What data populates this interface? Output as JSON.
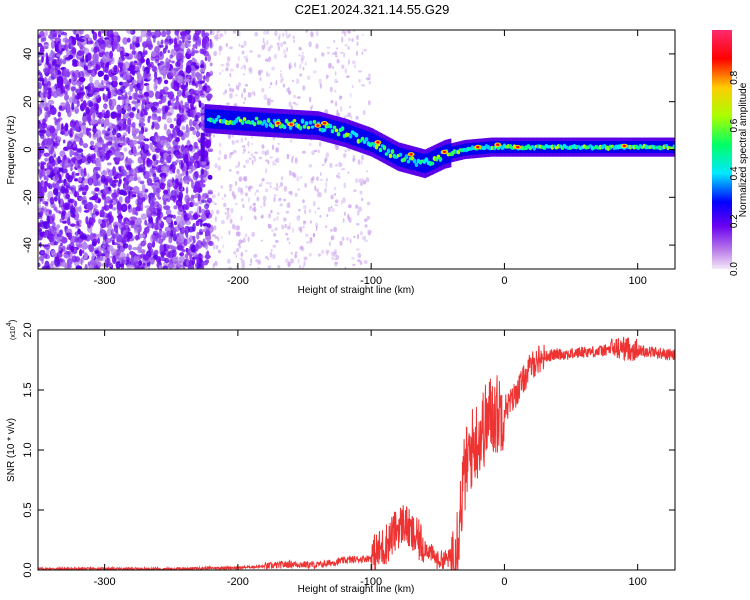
{
  "title": "C2E1.2024.321.14.55.G29",
  "chart_data": [
    {
      "type": "heatmap",
      "xlabel": "Height of straight line (km)",
      "ylabel": "Frequency (Hz)",
      "xlim": [
        -350,
        128
      ],
      "ylim": [
        -50,
        50
      ],
      "x_ticks": [
        -300,
        -200,
        -100,
        0,
        100
      ],
      "y_ticks": [
        -40,
        -20,
        0,
        20,
        40
      ],
      "colorbar": {
        "label": "Normalized spectral amplitude",
        "range": [
          0,
          1
        ],
        "ticks": [
          "0.0",
          "0.2",
          "0.4",
          "0.6",
          "0.8"
        ],
        "colors": [
          "#f4e8f8",
          "#b97be8",
          "#6a00f0",
          "#0000ff",
          "#00e8ff",
          "#00ff66",
          "#aaff00",
          "#ffcc00",
          "#ff0000",
          "#ff2a6e"
        ]
      },
      "ridge": [
        {
          "x": -225,
          "freq": 13
        },
        {
          "x": -200,
          "freq": 12
        },
        {
          "x": -170,
          "freq": 11
        },
        {
          "x": -140,
          "freq": 10
        },
        {
          "x": -120,
          "freq": 7
        },
        {
          "x": -100,
          "freq": 3
        },
        {
          "x": -80,
          "freq": -3
        },
        {
          "x": -60,
          "freq": -6
        },
        {
          "x": -45,
          "freq": -2
        },
        {
          "x": -30,
          "freq": 0
        },
        {
          "x": -10,
          "freq": 1
        },
        {
          "x": 0,
          "freq": 1
        },
        {
          "x": 50,
          "freq": 1
        },
        {
          "x": 128,
          "freq": 1
        }
      ]
    },
    {
      "type": "line",
      "xlabel": "Height of straight line (km)",
      "ylabel": "SNR (10 * v/v)",
      "y_scale_label": "(x10",
      "y_scale_exp": "4",
      "y_scale_close": ")",
      "xlim": [
        -350,
        128
      ],
      "ylim": [
        0,
        2.0
      ],
      "x_ticks": [
        -300,
        -200,
        -100,
        0,
        100
      ],
      "y_ticks": [
        "0.0",
        "0.5",
        "1.0",
        "1.5",
        "2.0"
      ],
      "series": [
        {
          "color": "#ee3333",
          "x": [
            -350,
            -300,
            -250,
            -200,
            -180,
            -160,
            -140,
            -120,
            -100,
            -90,
            -80,
            -75,
            -70,
            -60,
            -50,
            -40,
            -35,
            -30,
            -25,
            -20,
            -15,
            -10,
            -5,
            0,
            5,
            10,
            15,
            20,
            25,
            30,
            40,
            50,
            60,
            70,
            80,
            90,
            100,
            110,
            120,
            128
          ],
          "y": [
            0.01,
            0.01,
            0.01,
            0.02,
            0.03,
            0.05,
            0.04,
            0.08,
            0.1,
            0.2,
            0.35,
            0.4,
            0.3,
            0.2,
            0.08,
            0.1,
            0.3,
            0.8,
            1.0,
            1.1,
            1.2,
            1.3,
            1.3,
            1.35,
            1.4,
            1.5,
            1.6,
            1.7,
            1.75,
            1.78,
            1.8,
            1.8,
            1.82,
            1.82,
            1.84,
            1.85,
            1.83,
            1.82,
            1.8,
            1.79
          ]
        }
      ]
    }
  ]
}
